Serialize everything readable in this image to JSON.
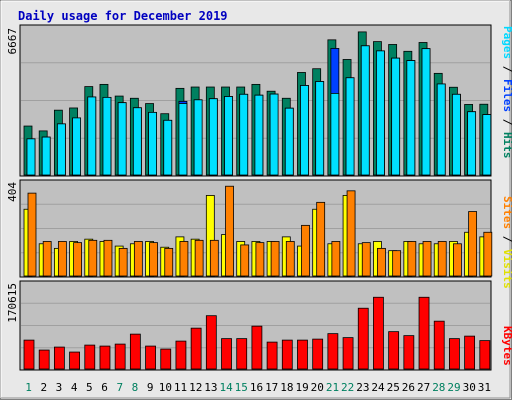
{
  "chart_data": {
    "type": "bar",
    "title": "Daily usage for December 2019",
    "days": [
      "1",
      "2",
      "3",
      "4",
      "5",
      "6",
      "7",
      "8",
      "9",
      "10",
      "11",
      "12",
      "13",
      "14",
      "15",
      "16",
      "17",
      "18",
      "19",
      "20",
      "21",
      "22",
      "23",
      "24",
      "25",
      "26",
      "27",
      "28",
      "29",
      "30",
      "31"
    ],
    "weekend_days": [
      "1",
      "7",
      "8",
      "14",
      "15",
      "21",
      "22",
      "28",
      "29"
    ],
    "legend": {
      "upper": [
        {
          "text": "Pages",
          "color": "#00d8ff"
        },
        {
          "text": " / ",
          "color": "#000000"
        },
        {
          "text": "Files",
          "color": "#0040ff"
        },
        {
          "text": " / ",
          "color": "#000000"
        },
        {
          "text": "Hits",
          "color": "#008060"
        }
      ],
      "middle": [
        {
          "text": "Sites",
          "color": "#ff8000"
        },
        {
          "text": " / ",
          "color": "#000000"
        },
        {
          "text": "Visits",
          "color": "#ffff00"
        }
      ],
      "lower": [
        {
          "text": "KBytes",
          "color": "#ff0000"
        }
      ]
    },
    "axis_max_labels": {
      "upper": "6667",
      "middle": "404",
      "lower": "170615"
    },
    "colors": {
      "hits": "#008060",
      "files": "#0040ff",
      "pages": "#00e0ff",
      "visits": "#ffff00",
      "sites": "#ff8000",
      "kbytes": "#ff0000",
      "plot_bg": "#c0c0c0",
      "frame_bg": "#e8e8e8",
      "title": "#0000c0",
      "weekday_label": "#000000",
      "weekend_label": "#008060"
    },
    "upper_panel": {
      "ylim": [
        0,
        6667
      ],
      "series": [
        {
          "name": "Hits",
          "values": [
            2220,
            2000,
            2940,
            3040,
            4010,
            4110,
            3580,
            3480,
            3240,
            2780,
            3930,
            3990,
            3990,
            3990,
            3990,
            4110,
            3800,
            3480,
            4650,
            4820,
            6130,
            5240,
            6490,
            6050,
            5920,
            5610,
            6010,
            4610,
            3980,
            3200,
            3210
          ]
        },
        {
          "name": "Files",
          "values": [
            1640,
            1720,
            2320,
            2590,
            3540,
            3520,
            3280,
            3050,
            2840,
            2480,
            3340,
            3410,
            3460,
            3560,
            3660,
            3620,
            3670,
            3030,
            4060,
            4240,
            5740,
            4410,
            5860,
            5630,
            5300,
            5190,
            5730,
            4130,
            3660,
            2870,
            2740
          ]
        },
        {
          "name": "Pages",
          "values": [
            1640,
            1720,
            2320,
            2590,
            3540,
            3520,
            3280,
            3050,
            2840,
            2480,
            3240,
            3410,
            3460,
            3560,
            3660,
            3620,
            3670,
            3030,
            4060,
            4240,
            3700,
            4410,
            5860,
            5630,
            5300,
            5190,
            5730,
            4130,
            3660,
            2870,
            2740
          ]
        }
      ]
    },
    "middle_panel": {
      "ylim": [
        0,
        404
      ],
      "series": [
        {
          "name": "Visits",
          "values": [
            290,
            140,
            120,
            150,
            160,
            150,
            130,
            140,
            150,
            125,
            170,
            160,
            350,
            180,
            150,
            150,
            150,
            170,
            130,
            290,
            140,
            350,
            140,
            150,
            110,
            150,
            140,
            140,
            150,
            190,
            170
          ]
        },
        {
          "name": "Sites",
          "values": [
            360,
            150,
            150,
            145,
            155,
            155,
            120,
            150,
            145,
            120,
            150,
            155,
            155,
            390,
            135,
            145,
            150,
            150,
            220,
            320,
            150,
            370,
            145,
            120,
            110,
            150,
            150,
            150,
            140,
            280,
            190
          ]
        }
      ]
    },
    "lower_panel": {
      "ylim": [
        0,
        170615
      ],
      "series": [
        {
          "name": "KBytes",
          "values": [
            58000,
            38000,
            44000,
            34000,
            48000,
            46000,
            50000,
            70000,
            46000,
            40000,
            56000,
            82000,
            107000,
            61000,
            61000,
            86000,
            54000,
            58000,
            58000,
            60000,
            71000,
            63000,
            122000,
            144000,
            75000,
            67000,
            144000,
            96000,
            61000,
            66000,
            57000
          ]
        }
      ]
    }
  }
}
